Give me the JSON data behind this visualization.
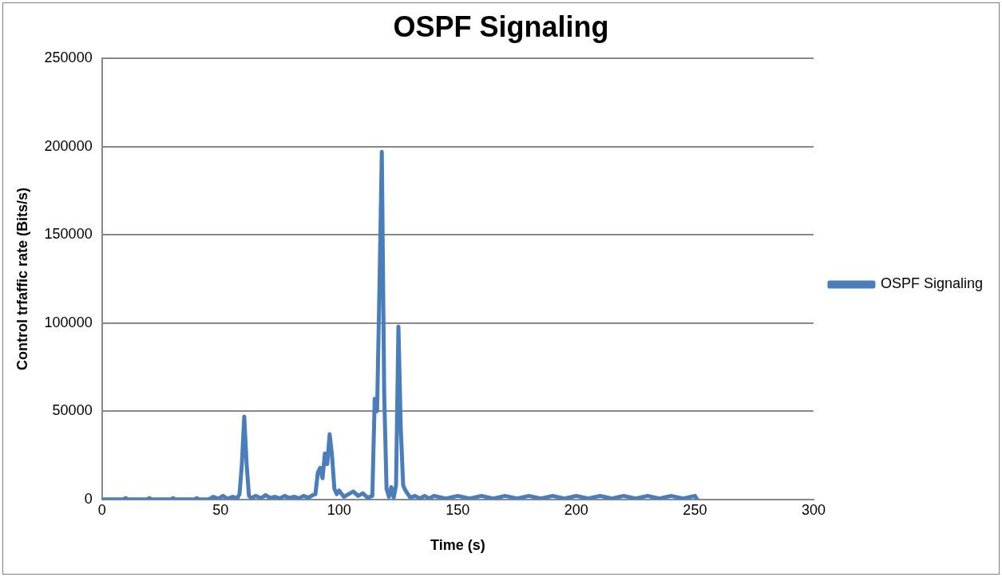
{
  "chart_data": {
    "type": "line",
    "title": "OSPF Signaling",
    "xlabel": "Time (s)",
    "ylabel": "Control trfaffic rate (Bits/s)",
    "xlim": [
      0,
      300
    ],
    "xticks": [
      0,
      50,
      100,
      150,
      200,
      250,
      300
    ],
    "ylim": [
      0,
      250000
    ],
    "yticks": [
      0,
      50000,
      100000,
      150000,
      200000,
      250000
    ],
    "grid": "y",
    "legend": "right",
    "marker": "none",
    "line_style": "solid",
    "series": [
      {
        "name": "OSPF Signaling",
        "color": "#4a7ebb",
        "x": [
          0,
          9,
          10,
          11,
          19,
          20,
          21,
          29,
          30,
          31,
          39,
          40,
          41,
          45,
          47,
          49,
          51,
          53,
          55,
          57,
          58,
          59,
          60,
          61,
          62,
          63,
          65,
          67,
          69,
          71,
          73,
          75,
          77,
          79,
          81,
          83,
          85,
          87,
          89,
          90,
          91,
          92,
          93,
          94,
          95,
          96,
          97,
          98,
          99,
          100,
          102,
          104,
          106,
          108,
          110,
          112,
          114,
          115,
          116,
          117,
          118,
          119,
          120,
          121,
          122,
          123,
          124,
          125,
          126,
          127,
          128,
          129,
          130,
          132,
          134,
          136,
          138,
          140,
          145,
          150,
          155,
          160,
          165,
          170,
          175,
          180,
          185,
          190,
          195,
          200,
          205,
          210,
          215,
          220,
          225,
          230,
          235,
          240,
          245,
          250,
          251
        ],
        "values": [
          0,
          0,
          800,
          0,
          0,
          800,
          0,
          0,
          800,
          0,
          0,
          800,
          0,
          0,
          1500,
          300,
          2000,
          300,
          1500,
          600,
          3000,
          20000,
          47000,
          20000,
          2000,
          800,
          2000,
          600,
          2500,
          800,
          1500,
          500,
          2000,
          800,
          1500,
          600,
          2000,
          1000,
          2500,
          3000,
          15000,
          18000,
          12000,
          26000,
          20000,
          37000,
          25000,
          6000,
          3000,
          5000,
          1500,
          3000,
          4500,
          2000,
          3500,
          1000,
          2000,
          57000,
          50000,
          120000,
          197000,
          60000,
          6000,
          1500,
          7000,
          1000,
          8000,
          98000,
          40000,
          8000,
          5000,
          3000,
          1000,
          2000,
          500,
          2000,
          500,
          2000,
          500,
          2000,
          500,
          2000,
          500,
          2000,
          500,
          2000,
          500,
          2000,
          500,
          2000,
          500,
          2000,
          500,
          2000,
          500,
          2000,
          500,
          2000,
          500,
          2000,
          0
        ]
      }
    ]
  }
}
